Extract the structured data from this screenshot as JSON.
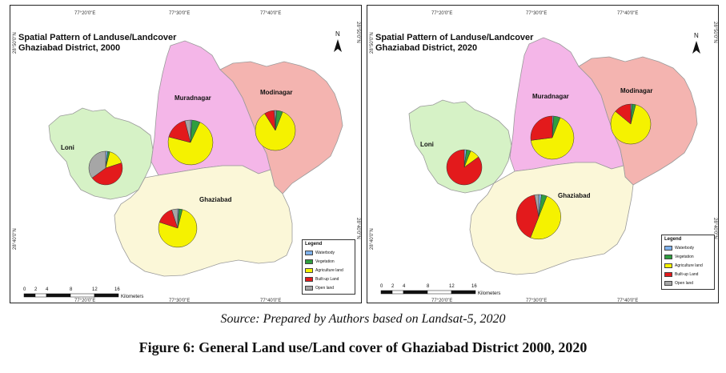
{
  "colors": {
    "waterbody": "#7fb2ec",
    "vegetation": "#2f9e3f",
    "agriculture": "#f5f200",
    "builtup": "#e31a1c",
    "open": "#a6a6a6",
    "loni_fill": "#d6f2c6",
    "muradnagar_fill": "#f4b6e8",
    "modinagar_fill": "#f4b4b0",
    "ghaziabad_fill": "#fbf7d8"
  },
  "icons": {
    "north": "north-arrow-icon"
  },
  "legend": {
    "title": "Legend",
    "items": [
      {
        "label": "Waterbody",
        "color": "#7fb2ec"
      },
      {
        "label": "Vegetation",
        "color": "#2f9e3f"
      },
      {
        "label": "Agriculture land",
        "color": "#f5f200"
      },
      {
        "label": "Built-up Land",
        "color": "#e31a1c"
      },
      {
        "label": "Open land",
        "color": "#a6a6a6"
      }
    ]
  },
  "coords": {
    "top": [
      "77°20'0\"E",
      "77°30'0\"E",
      "77°40'0\"E"
    ],
    "bottom": [
      "77°20'0\"E",
      "77°30'0\"E",
      "77°40'0\"E"
    ],
    "left": [
      "28°50'0\"N",
      "28°40'0\"N"
    ],
    "right": [
      "28°50'0\"N",
      "28°40'0\"N"
    ]
  },
  "north_label": "N",
  "scale": {
    "ticks": [
      "0",
      "2",
      "4",
      "8",
      "12",
      "16"
    ],
    "unit": "Kilometers"
  },
  "regions": [
    "Loni",
    "Muradnagar",
    "Modinagar",
    "Ghaziabad"
  ],
  "maps": [
    {
      "title_line1": "Spatial Pattern of Landuse/Landcover",
      "title_line2": "Ghaziabad District, 2000",
      "pies": {
        "Loni": {
          "waterbody": 2,
          "vegetation": 2,
          "agriculture": 16,
          "builtup": 45,
          "open": 35
        },
        "Muradnagar": {
          "waterbody": 1,
          "vegetation": 6,
          "agriculture": 72,
          "builtup": 17,
          "open": 4
        },
        "Modinagar": {
          "waterbody": 1,
          "vegetation": 5,
          "agriculture": 85,
          "builtup": 8,
          "open": 1
        },
        "Ghaziabad": {
          "waterbody": 1,
          "vegetation": 3,
          "agriculture": 76,
          "builtup": 15,
          "open": 5
        }
      }
    },
    {
      "title_line1": "Spatial Pattern of Landuse/Landcover",
      "title_line2": "Ghaziabad District, 2020",
      "pies": {
        "Loni": {
          "waterbody": 2,
          "vegetation": 4,
          "agriculture": 9,
          "builtup": 85,
          "open": 0
        },
        "Muradnagar": {
          "waterbody": 1,
          "vegetation": 5,
          "agriculture": 67,
          "builtup": 27,
          "open": 0
        },
        "Modinagar": {
          "waterbody": 1,
          "vegetation": 3,
          "agriculture": 82,
          "builtup": 14,
          "open": 0
        },
        "Ghaziabad": {
          "waterbody": 2,
          "vegetation": 4,
          "agriculture": 50,
          "builtup": 41,
          "open": 3
        }
      }
    }
  ],
  "source": "Source: Prepared by Authors based on Landsat-5, 2020",
  "caption": "Figure 6: General Land use/Land cover of Ghaziabad District 2000, 2020"
}
